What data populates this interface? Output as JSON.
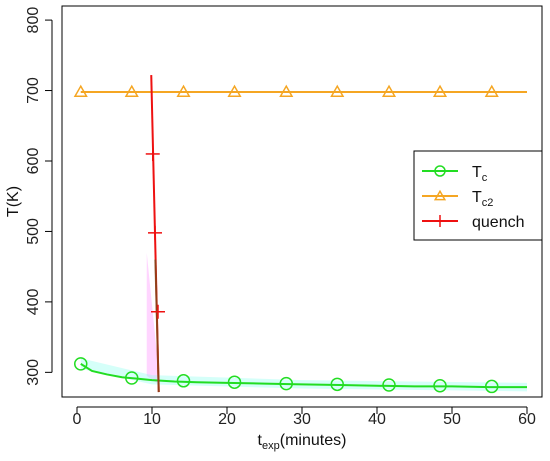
{
  "chart_data": {
    "type": "line",
    "xlabel": {
      "main": "t",
      "sub": "exp",
      "suffix": "(minutes)"
    },
    "ylabel": "T(K)",
    "xlim": [
      -2,
      62
    ],
    "ylim": [
      265,
      820
    ],
    "x_ticks": [
      0,
      10,
      20,
      30,
      40,
      50,
      60
    ],
    "y_ticks": [
      300,
      400,
      500,
      600,
      700,
      800
    ],
    "legend_position": "right",
    "series": [
      {
        "name": "T",
        "name_sub": "c",
        "color": "#22dd22",
        "marker": "circle",
        "curve_x": [
          0.5,
          2,
          4,
          6,
          8,
          10,
          13,
          16,
          20,
          25,
          30,
          35,
          40,
          45,
          50,
          55,
          60
        ],
        "curve_y": [
          312,
          302,
          297,
          293,
          291,
          289,
          287,
          286,
          285,
          284,
          283,
          282,
          281,
          280,
          280,
          279,
          279
        ],
        "points_x": [
          0.5,
          7.3,
          14.2,
          21.0,
          27.9,
          34.7,
          41.6,
          48.4,
          55.3
        ],
        "points_y": [
          312,
          292,
          288,
          286,
          284,
          283,
          282,
          281,
          280
        ]
      },
      {
        "name": "T",
        "name_sub": "c2",
        "color": "#f5a623",
        "marker": "triangle",
        "curve_x": [
          0.5,
          60
        ],
        "curve_y": [
          698,
          698
        ],
        "points_x": [
          0.5,
          7.3,
          14.2,
          21.0,
          27.9,
          34.7,
          41.6,
          48.4,
          55.3
        ],
        "points_y": [
          698,
          698,
          698,
          698,
          698,
          698,
          698,
          698,
          698
        ]
      },
      {
        "name": "quench",
        "name_sub": "",
        "color": "#ee1111",
        "marker": "plus",
        "curve_x": [
          9.9,
          10.9
        ],
        "curve_y": [
          722,
          272
        ],
        "points_x": [
          10.1,
          10.4,
          10.8
        ],
        "points_y": [
          610,
          498,
          386
        ]
      }
    ],
    "bands": [
      {
        "color": "#ff88ff",
        "x": [
          9.3,
          10.9
        ],
        "y_low": [
          295,
          283
        ],
        "y_high": [
          470,
          300
        ]
      },
      {
        "color": "#88ffee",
        "x": [
          0.5,
          10,
          30,
          60
        ],
        "y_low": [
          305,
          283,
          277,
          273
        ],
        "y_high": [
          320,
          296,
          289,
          285
        ]
      }
    ]
  }
}
